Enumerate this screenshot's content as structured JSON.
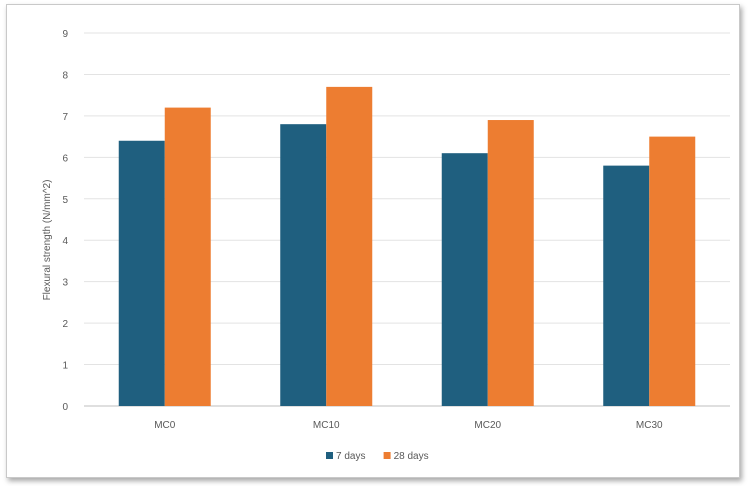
{
  "chart_data": {
    "type": "bar",
    "title": "",
    "xlabel": "",
    "ylabel": "Flexural strength (N/mm^2)",
    "categories": [
      "MC0",
      "MC10",
      "MC20",
      "MC30"
    ],
    "series": [
      {
        "name": "7 days",
        "color": "#1f5f7f",
        "values": [
          6.4,
          6.8,
          6.1,
          5.8
        ]
      },
      {
        "name": "28 days",
        "color": "#ed7d31",
        "values": [
          7.2,
          7.7,
          6.9,
          6.5
        ]
      }
    ],
    "ylim": [
      0,
      9
    ],
    "yticks": [
      "0",
      "1",
      "2",
      "3",
      "4",
      "5",
      "6",
      "7",
      "8",
      "9"
    ],
    "grid": true,
    "legend_position": "bottom"
  }
}
